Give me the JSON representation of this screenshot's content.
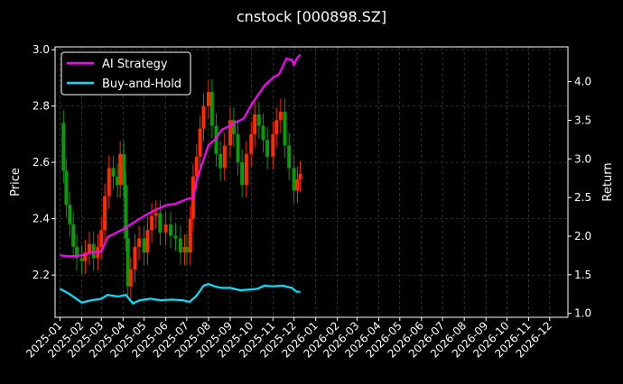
{
  "chart_data": {
    "type": "line",
    "title": "cnstock [000898.SZ]",
    "ylabel": "Price",
    "ylabel_right": "Return",
    "ylim_left": [
      2.05,
      3.01
    ],
    "ylim_right": [
      0.95,
      4.45
    ],
    "left_ticks": [
      "2.2",
      "2.4",
      "2.6",
      "2.8",
      "3.0"
    ],
    "left_tick_values": [
      2.2,
      2.4,
      2.6,
      2.8,
      3.0
    ],
    "right_ticks": [
      "1.0",
      "1.5",
      "2.0",
      "2.5",
      "3.0",
      "3.5",
      "4.0"
    ],
    "right_tick_values": [
      1.0,
      1.5,
      2.0,
      2.5,
      3.0,
      3.5,
      4.0
    ],
    "x_ticks": [
      "2025-01",
      "2025-02",
      "2025-03",
      "2025-04",
      "2025-05",
      "2025-06",
      "2025-07",
      "2025-08",
      "2025-09",
      "2025-10",
      "2025-11",
      "2025-12",
      "2026-01",
      "2026-02",
      "2026-03",
      "2026-04",
      "2026-05",
      "2026-06",
      "2026-07",
      "2026-08",
      "2026-09",
      "2026-10",
      "2026-11",
      "2026-12"
    ],
    "grid": true,
    "legend_position": "top-left",
    "candle_colors": {
      "up": "#ff2a00",
      "down": "#0a9a0a"
    },
    "candles_close": [
      [
        "2025-01-01",
        2.74
      ],
      [
        "2025-01-06",
        2.57
      ],
      [
        "2025-01-10",
        2.45
      ],
      [
        "2025-01-15",
        2.38
      ],
      [
        "2025-01-20",
        2.3
      ],
      [
        "2025-01-25",
        2.26
      ],
      [
        "2025-02-01",
        2.25
      ],
      [
        "2025-02-06",
        2.28
      ],
      [
        "2025-02-12",
        2.31
      ],
      [
        "2025-02-18",
        2.26
      ],
      [
        "2025-02-24",
        2.3
      ],
      [
        "2025-03-01",
        2.36
      ],
      [
        "2025-03-06",
        2.48
      ],
      [
        "2025-03-12",
        2.58
      ],
      [
        "2025-03-18",
        2.55
      ],
      [
        "2025-03-24",
        2.52
      ],
      [
        "2025-03-28",
        2.63
      ],
      [
        "2025-04-02",
        2.52
      ],
      [
        "2025-04-05",
        2.33
      ],
      [
        "2025-04-08",
        2.16
      ],
      [
        "2025-04-12",
        2.22
      ],
      [
        "2025-04-18",
        2.3
      ],
      [
        "2025-04-24",
        2.33
      ],
      [
        "2025-05-01",
        2.28
      ],
      [
        "2025-05-06",
        2.36
      ],
      [
        "2025-05-12",
        2.41
      ],
      [
        "2025-05-18",
        2.42
      ],
      [
        "2025-05-24",
        2.35
      ],
      [
        "2025-06-01",
        2.38
      ],
      [
        "2025-06-08",
        2.34
      ],
      [
        "2025-06-15",
        2.33
      ],
      [
        "2025-06-22",
        2.28
      ],
      [
        "2025-06-28",
        2.3
      ],
      [
        "2025-07-01",
        2.28
      ],
      [
        "2025-07-06",
        2.4
      ],
      [
        "2025-07-10",
        2.55
      ],
      [
        "2025-07-15",
        2.62
      ],
      [
        "2025-07-20",
        2.72
      ],
      [
        "2025-07-25",
        2.8
      ],
      [
        "2025-08-01",
        2.85
      ],
      [
        "2025-08-06",
        2.73
      ],
      [
        "2025-08-12",
        2.63
      ],
      [
        "2025-08-18",
        2.58
      ],
      [
        "2025-08-24",
        2.66
      ],
      [
        "2025-09-01",
        2.75
      ],
      [
        "2025-09-06",
        2.7
      ],
      [
        "2025-09-12",
        2.6
      ],
      [
        "2025-09-18",
        2.52
      ],
      [
        "2025-09-24",
        2.63
      ],
      [
        "2025-10-01",
        2.7
      ],
      [
        "2025-10-06",
        2.77
      ],
      [
        "2025-10-12",
        2.73
      ],
      [
        "2025-10-18",
        2.68
      ],
      [
        "2025-10-24",
        2.62
      ],
      [
        "2025-11-01",
        2.7
      ],
      [
        "2025-11-06",
        2.75
      ],
      [
        "2025-11-12",
        2.78
      ],
      [
        "2025-11-18",
        2.66
      ],
      [
        "2025-11-24",
        2.58
      ],
      [
        "2025-12-01",
        2.5
      ],
      [
        "2025-12-06",
        2.54
      ],
      [
        "2025-12-10",
        2.56
      ]
    ],
    "series": [
      {
        "name": "AI Strategy",
        "color": "#ff00ff",
        "axis": "right",
        "points": [
          [
            "2025-01-01",
            1.75
          ],
          [
            "2025-01-15",
            1.74
          ],
          [
            "2025-02-01",
            1.75
          ],
          [
            "2025-02-15",
            1.79
          ],
          [
            "2025-03-01",
            1.8
          ],
          [
            "2025-03-10",
            1.99
          ],
          [
            "2025-04-01",
            2.09
          ],
          [
            "2025-04-15",
            2.17
          ],
          [
            "2025-05-01",
            2.26
          ],
          [
            "2025-05-15",
            2.33
          ],
          [
            "2025-06-01",
            2.4
          ],
          [
            "2025-06-15",
            2.42
          ],
          [
            "2025-07-01",
            2.48
          ],
          [
            "2025-07-10",
            2.5
          ],
          [
            "2025-07-15",
            2.72
          ],
          [
            "2025-07-20",
            2.86
          ],
          [
            "2025-08-01",
            3.18
          ],
          [
            "2025-08-10",
            3.25
          ],
          [
            "2025-08-20",
            3.38
          ],
          [
            "2025-09-01",
            3.43
          ],
          [
            "2025-09-10",
            3.48
          ],
          [
            "2025-09-20",
            3.52
          ],
          [
            "2025-10-01",
            3.7
          ],
          [
            "2025-10-10",
            3.82
          ],
          [
            "2025-10-20",
            3.95
          ],
          [
            "2025-11-01",
            4.05
          ],
          [
            "2025-11-10",
            4.1
          ],
          [
            "2025-11-20",
            4.3
          ],
          [
            "2025-11-28",
            4.28
          ],
          [
            "2025-12-01",
            4.22
          ],
          [
            "2025-12-05",
            4.3
          ],
          [
            "2025-12-10",
            4.35
          ]
        ]
      },
      {
        "name": "Buy-and-Hold",
        "color": "#00e5ff",
        "axis": "right",
        "points": [
          [
            "2025-01-01",
            1.32
          ],
          [
            "2025-01-15",
            1.25
          ],
          [
            "2025-02-01",
            1.14
          ],
          [
            "2025-02-15",
            1.17
          ],
          [
            "2025-03-01",
            1.19
          ],
          [
            "2025-03-10",
            1.24
          ],
          [
            "2025-03-25",
            1.22
          ],
          [
            "2025-04-05",
            1.24
          ],
          [
            "2025-04-15",
            1.13
          ],
          [
            "2025-04-25",
            1.17
          ],
          [
            "2025-05-10",
            1.19
          ],
          [
            "2025-05-25",
            1.17
          ],
          [
            "2025-06-10",
            1.18
          ],
          [
            "2025-06-25",
            1.17
          ],
          [
            "2025-07-05",
            1.15
          ],
          [
            "2025-07-15",
            1.23
          ],
          [
            "2025-07-25",
            1.36
          ],
          [
            "2025-08-01",
            1.38
          ],
          [
            "2025-08-10",
            1.35
          ],
          [
            "2025-08-20",
            1.33
          ],
          [
            "2025-09-01",
            1.33
          ],
          [
            "2025-09-15",
            1.3
          ],
          [
            "2025-10-01",
            1.31
          ],
          [
            "2025-10-10",
            1.32
          ],
          [
            "2025-10-20",
            1.36
          ],
          [
            "2025-11-01",
            1.35
          ],
          [
            "2025-11-15",
            1.36
          ],
          [
            "2025-11-28",
            1.33
          ],
          [
            "2025-12-05",
            1.28
          ],
          [
            "2025-12-10",
            1.28
          ]
        ]
      }
    ]
  }
}
